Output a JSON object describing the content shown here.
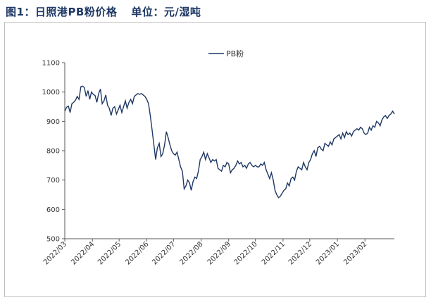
{
  "header": {
    "title": "图1：日照港PB粉价格",
    "unit": "单位：元/湿吨"
  },
  "colors": {
    "series": "#1f3864",
    "title": "#1f3864",
    "axis": "#595959",
    "frame": "#bfbfbf"
  },
  "chart_data": {
    "type": "line",
    "title": "",
    "xlabel": "",
    "ylabel": "",
    "ylim": [
      500,
      1100
    ],
    "yticks": [
      500,
      600,
      700,
      800,
      900,
      1000,
      1100
    ],
    "xticks": [
      "2022/03",
      "2022/04",
      "2022/05",
      "2022/06",
      "2022/07",
      "2022/08",
      "2022/09",
      "2022/10",
      "2022/11",
      "2022/12",
      "2023/01",
      "2023/02"
    ],
    "grid": false,
    "legend_position": "top-center",
    "series": [
      {
        "name": "PB粉",
        "x": [
          "2022-03-01",
          "2022-03-03",
          "2022-03-05",
          "2022-03-07",
          "2022-03-09",
          "2022-03-11",
          "2022-03-13",
          "2022-03-15",
          "2022-03-17",
          "2022-03-19",
          "2022-03-21",
          "2022-03-23",
          "2022-03-25",
          "2022-03-27",
          "2022-03-29",
          "2022-03-31",
          "2022-04-02",
          "2022-04-04",
          "2022-04-06",
          "2022-04-08",
          "2022-04-10",
          "2022-04-12",
          "2022-04-14",
          "2022-04-16",
          "2022-04-18",
          "2022-04-20",
          "2022-04-22",
          "2022-04-24",
          "2022-04-26",
          "2022-04-28",
          "2022-04-30",
          "2022-05-02",
          "2022-05-04",
          "2022-05-06",
          "2022-05-08",
          "2022-05-10",
          "2022-05-12",
          "2022-05-14",
          "2022-05-16",
          "2022-05-18",
          "2022-05-20",
          "2022-05-22",
          "2022-05-24",
          "2022-05-26",
          "2022-05-28",
          "2022-05-30",
          "2022-06-01",
          "2022-06-03",
          "2022-06-05",
          "2022-06-07",
          "2022-06-09",
          "2022-06-11",
          "2022-06-13",
          "2022-06-15",
          "2022-06-17",
          "2022-06-19",
          "2022-06-21",
          "2022-06-23",
          "2022-06-25",
          "2022-06-27",
          "2022-06-29",
          "2022-07-01",
          "2022-07-03",
          "2022-07-05",
          "2022-07-07",
          "2022-07-09",
          "2022-07-11",
          "2022-07-13",
          "2022-07-15",
          "2022-07-17",
          "2022-07-19",
          "2022-07-21",
          "2022-07-23",
          "2022-07-25",
          "2022-07-27",
          "2022-07-29",
          "2022-07-31",
          "2022-08-02",
          "2022-08-04",
          "2022-08-06",
          "2022-08-08",
          "2022-08-10",
          "2022-08-12",
          "2022-08-14",
          "2022-08-16",
          "2022-08-18",
          "2022-08-20",
          "2022-08-22",
          "2022-08-24",
          "2022-08-26",
          "2022-08-28",
          "2022-08-30",
          "2022-09-01",
          "2022-09-03",
          "2022-09-05",
          "2022-09-07",
          "2022-09-09",
          "2022-09-11",
          "2022-09-13",
          "2022-09-15",
          "2022-09-17",
          "2022-09-19",
          "2022-09-21",
          "2022-09-23",
          "2022-09-25",
          "2022-09-27",
          "2022-09-29",
          "2022-10-01",
          "2022-10-03",
          "2022-10-05",
          "2022-10-07",
          "2022-10-09",
          "2022-10-11",
          "2022-10-13",
          "2022-10-15",
          "2022-10-17",
          "2022-10-19",
          "2022-10-21",
          "2022-10-23",
          "2022-10-25",
          "2022-10-27",
          "2022-10-29",
          "2022-10-31",
          "2022-11-02",
          "2022-11-04",
          "2022-11-06",
          "2022-11-08",
          "2022-11-10",
          "2022-11-12",
          "2022-11-14",
          "2022-11-16",
          "2022-11-18",
          "2022-11-20",
          "2022-11-22",
          "2022-11-24",
          "2022-11-26",
          "2022-11-28",
          "2022-11-30",
          "2022-12-02",
          "2022-12-04",
          "2022-12-06",
          "2022-12-08",
          "2022-12-10",
          "2022-12-12",
          "2022-12-14",
          "2022-12-16",
          "2022-12-18",
          "2022-12-20",
          "2022-12-22",
          "2022-12-24",
          "2022-12-26",
          "2022-12-28",
          "2022-12-30",
          "2023-01-01",
          "2023-01-03",
          "2023-01-05",
          "2023-01-07",
          "2023-01-09",
          "2023-01-11",
          "2023-01-13",
          "2023-01-15",
          "2023-01-17",
          "2023-01-19",
          "2023-01-21",
          "2023-01-23",
          "2023-01-25",
          "2023-01-27",
          "2023-01-29",
          "2023-01-31",
          "2023-02-02",
          "2023-02-04",
          "2023-02-06",
          "2023-02-08",
          "2023-02-10",
          "2023-02-12",
          "2023-02-14",
          "2023-02-16",
          "2023-02-18",
          "2023-02-20",
          "2023-02-22",
          "2023-02-24",
          "2023-02-26",
          "2023-02-28",
          "2023-03-02",
          "2023-03-04",
          "2023-03-06"
        ],
        "values": [
          935,
          948,
          952,
          930,
          960,
          965,
          972,
          985,
          975,
          1018,
          1020,
          1015,
          985,
          1005,
          975,
          1000,
          992,
          988,
          965,
          995,
          1010,
          960,
          970,
          990,
          955,
          945,
          920,
          945,
          950,
          925,
          940,
          955,
          930,
          950,
          970,
          945,
          965,
          975,
          960,
          985,
          990,
          995,
          992,
          995,
          990,
          985,
          975,
          960,
          920,
          870,
          820,
          770,
          810,
          825,
          780,
          790,
          820,
          865,
          845,
          820,
          800,
          790,
          785,
          795,
          770,
          745,
          730,
          670,
          680,
          700,
          690,
          665,
          695,
          710,
          705,
          730,
          770,
          780,
          795,
          770,
          790,
          775,
          760,
          770,
          765,
          770,
          740,
          735,
          730,
          750,
          745,
          760,
          755,
          725,
          735,
          740,
          750,
          765,
          755,
          760,
          745,
          750,
          740,
          755,
          760,
          750,
          745,
          750,
          745,
          745,
          755,
          750,
          760,
          735,
          720,
          705,
          725,
          700,
          665,
          650,
          640,
          645,
          655,
          665,
          670,
          690,
          680,
          705,
          710,
          700,
          730,
          745,
          740,
          735,
          760,
          745,
          735,
          760,
          770,
          790,
          800,
          780,
          810,
          815,
          805,
          800,
          825,
          820,
          815,
          830,
          820,
          840,
          845,
          850,
          855,
          840,
          860,
          845,
          865,
          855,
          860,
          850,
          865,
          870,
          875,
          870,
          880,
          875,
          860,
          855,
          860,
          880,
          870,
          885,
          880,
          900,
          895,
          885,
          905,
          915,
          920,
          910,
          920,
          925,
          935,
          925
        ]
      }
    ]
  }
}
